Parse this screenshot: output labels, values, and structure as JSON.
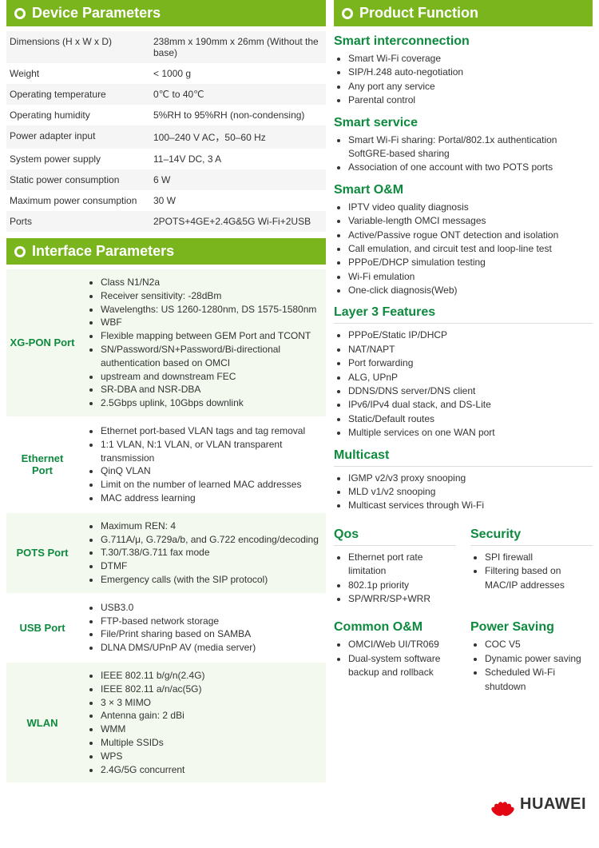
{
  "headers": {
    "device": "Device Parameters",
    "interface": "Interface Parameters",
    "product": "Product Function"
  },
  "device_params": [
    {
      "label": "Dimensions (H x W x D)",
      "value": "238mm x 190mm x 26mm (Without the base)"
    },
    {
      "label": "Weight",
      "value": "< 1000 g"
    },
    {
      "label": "Operating temperature",
      "value": "0℃ to 40℃"
    },
    {
      "label": "Operating humidity",
      "value": "5%RH to 95%RH (non-condensing)"
    },
    {
      "label": "Power adapter input",
      "value": "100–240 V AC，50–60 Hz"
    },
    {
      "label": "System power supply",
      "value": "11–14V DC, 3 A"
    },
    {
      "label": "Static power consumption",
      "value": "6 W"
    },
    {
      "label": "Maximum power consumption",
      "value": "30 W"
    },
    {
      "label": "Ports",
      "value": "2POTS+4GE+2.4G&5G Wi-Fi+2USB"
    }
  ],
  "interface_params": [
    {
      "name": "XG-PON Port",
      "items": [
        "Class N1/N2a",
        "Receiver sensitivity: -28dBm",
        "Wavelengths: US 1260-1280nm, DS 1575-1580nm",
        "WBF",
        "Flexible mapping between GEM Port and TCONT",
        "SN/Password/SN+Password/Bi-directional authentication based on OMCI",
        "upstream and downstream FEC",
        "SR-DBA and NSR-DBA",
        "2.5Gbps uplink, 10Gbps downlink"
      ]
    },
    {
      "name": "Ethernet Port",
      "items": [
        "Ethernet port-based VLAN tags and tag removal",
        "1:1 VLAN, N:1 VLAN, or VLAN transparent transmission",
        "QinQ VLAN",
        "Limit on the number of learned MAC addresses",
        "MAC address learning"
      ]
    },
    {
      "name": "POTS Port",
      "items": [
        "Maximum REN: 4",
        "G.711A/μ, G.729a/b, and G.722 encoding/decoding",
        "T.30/T.38/G.711 fax mode",
        "DTMF",
        "Emergency calls (with the SIP protocol)"
      ]
    },
    {
      "name": "USB Port",
      "items": [
        "USB3.0",
        "FTP-based network storage",
        "File/Print sharing based on SAMBA",
        "DLNA DMS/UPnP AV (media server)"
      ]
    },
    {
      "name": "WLAN",
      "items": [
        "IEEE 802.11 b/g/n(2.4G)",
        "IEEE 802.11 a/n/ac(5G)",
        "3 × 3 MIMO",
        "Antenna gain: 2 dBi",
        "WMM",
        "Multiple SSIDs",
        "WPS",
        "2.4G/5G concurrent"
      ]
    }
  ],
  "features": {
    "smart_interconnection": {
      "title": "Smart interconnection",
      "items": [
        "Smart Wi-Fi coverage",
        "SIP/H.248 auto-negotiation",
        "Any port any service",
        "Parental control"
      ]
    },
    "smart_service": {
      "title": "Smart service",
      "items": [
        "Smart Wi-Fi sharing: Portal/802.1x authentication SoftGRE-based sharing",
        "Association of one account with two POTS ports"
      ]
    },
    "smart_om": {
      "title": "Smart O&M",
      "items": [
        "IPTV video quality diagnosis",
        "Variable-length OMCI messages",
        "Active/Passive rogue ONT detection and isolation",
        "Call emulation, and circuit test and loop-line test",
        "PPPoE/DHCP simulation testing",
        "Wi-Fi emulation",
        "One-click diagnosis(Web)"
      ]
    },
    "layer3": {
      "title": "Layer 3 Features",
      "items": [
        "PPPoE/Static IP/DHCP",
        "NAT/NAPT",
        "Port forwarding",
        "ALG, UPnP",
        "DDNS/DNS server/DNS client",
        "IPv6/IPv4 dual stack, and DS-Lite",
        "Static/Default routes",
        "Multiple services on one WAN port"
      ]
    },
    "multicast": {
      "title": "Multicast",
      "items": [
        "IGMP v2/v3 proxy snooping",
        "MLD v1/v2 snooping",
        "Multicast services through Wi-Fi"
      ]
    },
    "qos": {
      "title": "Qos",
      "items": [
        "Ethernet port rate limitation",
        "802.1p priority",
        "SP/WRR/SP+WRR"
      ]
    },
    "security": {
      "title": "Security",
      "items": [
        "SPI firewall",
        "Filtering based on MAC/IP addresses"
      ]
    },
    "common_om": {
      "title": "Common O&M",
      "items": [
        "OMCI/Web UI/TR069",
        "Dual-system software backup and rollback"
      ]
    },
    "power_saving": {
      "title": "Power Saving",
      "items": [
        "COC V5",
        "Dynamic power saving",
        "Scheduled Wi-Fi shutdown"
      ]
    }
  },
  "logo": "HUAWEI",
  "colors": {
    "header_bg": "#7ab51d",
    "feature_title": "#0e8a3f",
    "logo_red": "#e30613"
  }
}
